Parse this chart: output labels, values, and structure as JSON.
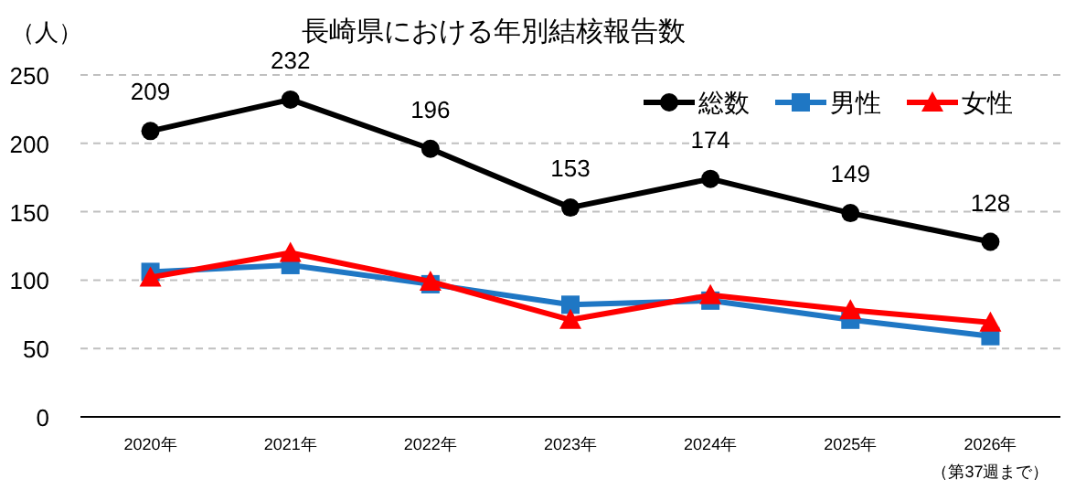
{
  "chart_data": {
    "type": "line",
    "title": "長崎県における年別結核報告数",
    "ylabel": "（人）",
    "categories": [
      "2020年",
      "2021年",
      "2022年",
      "2023年",
      "2024年",
      "2025年",
      "2026年（第37週まで）"
    ],
    "series": [
      {
        "name": "総数",
        "color": "#000000",
        "marker": "circle",
        "values": [
          209,
          232,
          196,
          153,
          174,
          149,
          128
        ],
        "value_labels": [
          "209",
          "232",
          "196",
          "153",
          "174",
          "149",
          "128"
        ]
      },
      {
        "name": "男性",
        "color": "#1f77c4",
        "marker": "square",
        "values": [
          106,
          111,
          97,
          82,
          85,
          71,
          59
        ]
      },
      {
        "name": "女性",
        "color": "#ff0000",
        "marker": "triangle",
        "values": [
          102,
          120,
          99,
          71,
          89,
          78,
          69
        ]
      }
    ],
    "ylim": [
      0,
      250
    ],
    "yticks": [
      0,
      50,
      100,
      150,
      200,
      250
    ],
    "grid": "y",
    "legend": "top right",
    "line_style": "solid"
  }
}
